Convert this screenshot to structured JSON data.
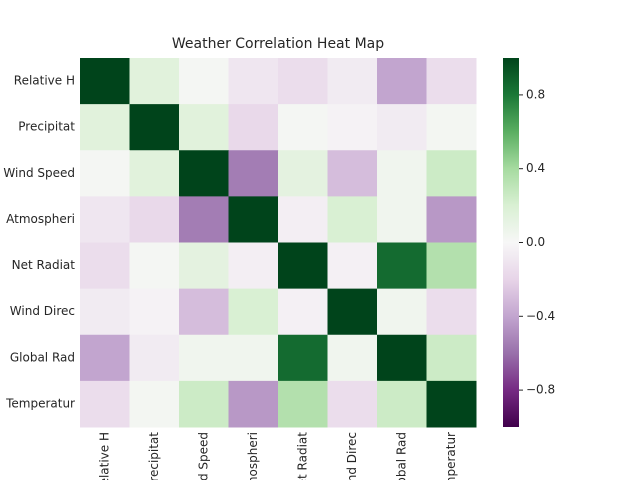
{
  "chart_data": {
    "type": "heatmap",
    "title": "Weather Correlation Heat Map",
    "categories": [
      "Relative H",
      "Precipitat",
      "Wind Speed",
      "Atmospheri",
      "Net Radiat",
      "Wind Direc",
      "Global Rad",
      "Temperatur"
    ],
    "values": [
      [
        1,
        0.15,
        0.02,
        -0.1,
        -0.15,
        -0.07,
        -0.4,
        -0.15
      ],
      [
        0.15,
        1,
        0.15,
        -0.17,
        0.02,
        -0.03,
        -0.07,
        0.03
      ],
      [
        0.02,
        0.15,
        1,
        -0.55,
        0.13,
        -0.3,
        0.05,
        0.25
      ],
      [
        -0.1,
        -0.17,
        -0.55,
        1,
        -0.05,
        0.2,
        0.05,
        -0.45
      ],
      [
        -0.15,
        0.02,
        0.13,
        -0.05,
        1,
        -0.04,
        0.85,
        0.35
      ],
      [
        -0.07,
        -0.03,
        -0.3,
        0.2,
        -0.04,
        1,
        0.05,
        -0.15
      ],
      [
        -0.4,
        -0.07,
        0.05,
        0.05,
        0.85,
        0.05,
        1,
        0.25
      ],
      [
        -0.15,
        0.03,
        0.25,
        -0.45,
        0.35,
        -0.15,
        0.25,
        1
      ]
    ],
    "colormap": "PRGn",
    "clim": [
      -1,
      1
    ],
    "cticks": [
      {
        "value": -0.8,
        "label": "−0.8"
      },
      {
        "value": -0.4,
        "label": "−0.4"
      },
      {
        "value": 0,
        "label": "0.0"
      },
      0.4,
      0.8
    ]
  }
}
